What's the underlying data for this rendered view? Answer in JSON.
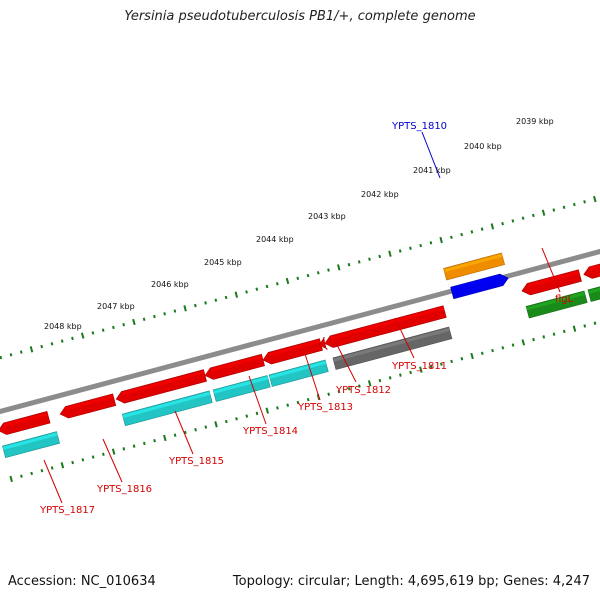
{
  "title": "Yersinia pseudotuberculosis PB1/+, complete genome",
  "footer": {
    "accession": "Accession: NC_010634",
    "summary": "Topology: circular; Length: 4,695,619 bp; Genes: 4,247"
  },
  "colors": {
    "ticks": "#1a7a1a",
    "backbone": "#8c8c8c",
    "label_red": "#d40000",
    "label_blue": "#0000cc",
    "red": "#e00000",
    "cyan": "#22c4c4",
    "gray": "#666666",
    "orange": "#f08c00",
    "blue": "#0000ee",
    "green": "#1a8a1a"
  },
  "tick_labels": [
    "2039 kbp",
    "2040 kbp",
    "2041 kbp",
    "2042 kbp",
    "2043 kbp",
    "2044 kbp",
    "2045 kbp",
    "2046 kbp",
    "2047 kbp",
    "2048 kbp"
  ],
  "gene_labels": [
    "YPTS_1810",
    "flgL",
    "YPTS_1811",
    "YPTS_1812",
    "YPTS_1813",
    "YPTS_1814",
    "YPTS_1815",
    "YPTS_1816",
    "YPTS_1817"
  ]
}
